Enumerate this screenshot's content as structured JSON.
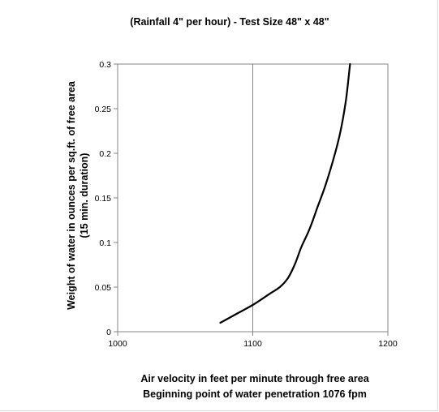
{
  "chart_data": {
    "type": "line",
    "title": "(Rainfall 4\" per hour) - Test Size 48\" x 48\"",
    "ylabel_line1": "Weight of water in ounces per sq.ft. of free area",
    "ylabel_line2": "(15 min. duration)",
    "xlabel_line1": "Air velocity in feet per minute through free area",
    "xlabel_line2": "Beginning point of water penetration  1076 fpm",
    "xlim": [
      1000,
      1200
    ],
    "ylim": [
      0,
      0.3
    ],
    "x_ticks": [
      "1000",
      "1100",
      "1200"
    ],
    "y_ticks": [
      "0",
      "0.05",
      "0.1",
      "0.15",
      "0.2",
      "0.25",
      "0.3"
    ],
    "x_tick_values": [
      1000,
      1100,
      1200
    ],
    "y_tick_values": [
      0,
      0.05,
      0.1,
      0.15,
      0.2,
      0.25,
      0.3
    ],
    "grid": true,
    "line_color": "#000000",
    "grid_color": "#868686",
    "series": [
      {
        "x": [
          1076,
          1088,
          1100,
          1112,
          1120,
          1126,
          1131,
          1136,
          1142,
          1148,
          1154,
          1160,
          1165,
          1169,
          1172
        ],
        "y": [
          0.01,
          0.02,
          0.03,
          0.042,
          0.05,
          0.06,
          0.075,
          0.095,
          0.115,
          0.14,
          0.165,
          0.195,
          0.225,
          0.26,
          0.3
        ]
      }
    ]
  }
}
